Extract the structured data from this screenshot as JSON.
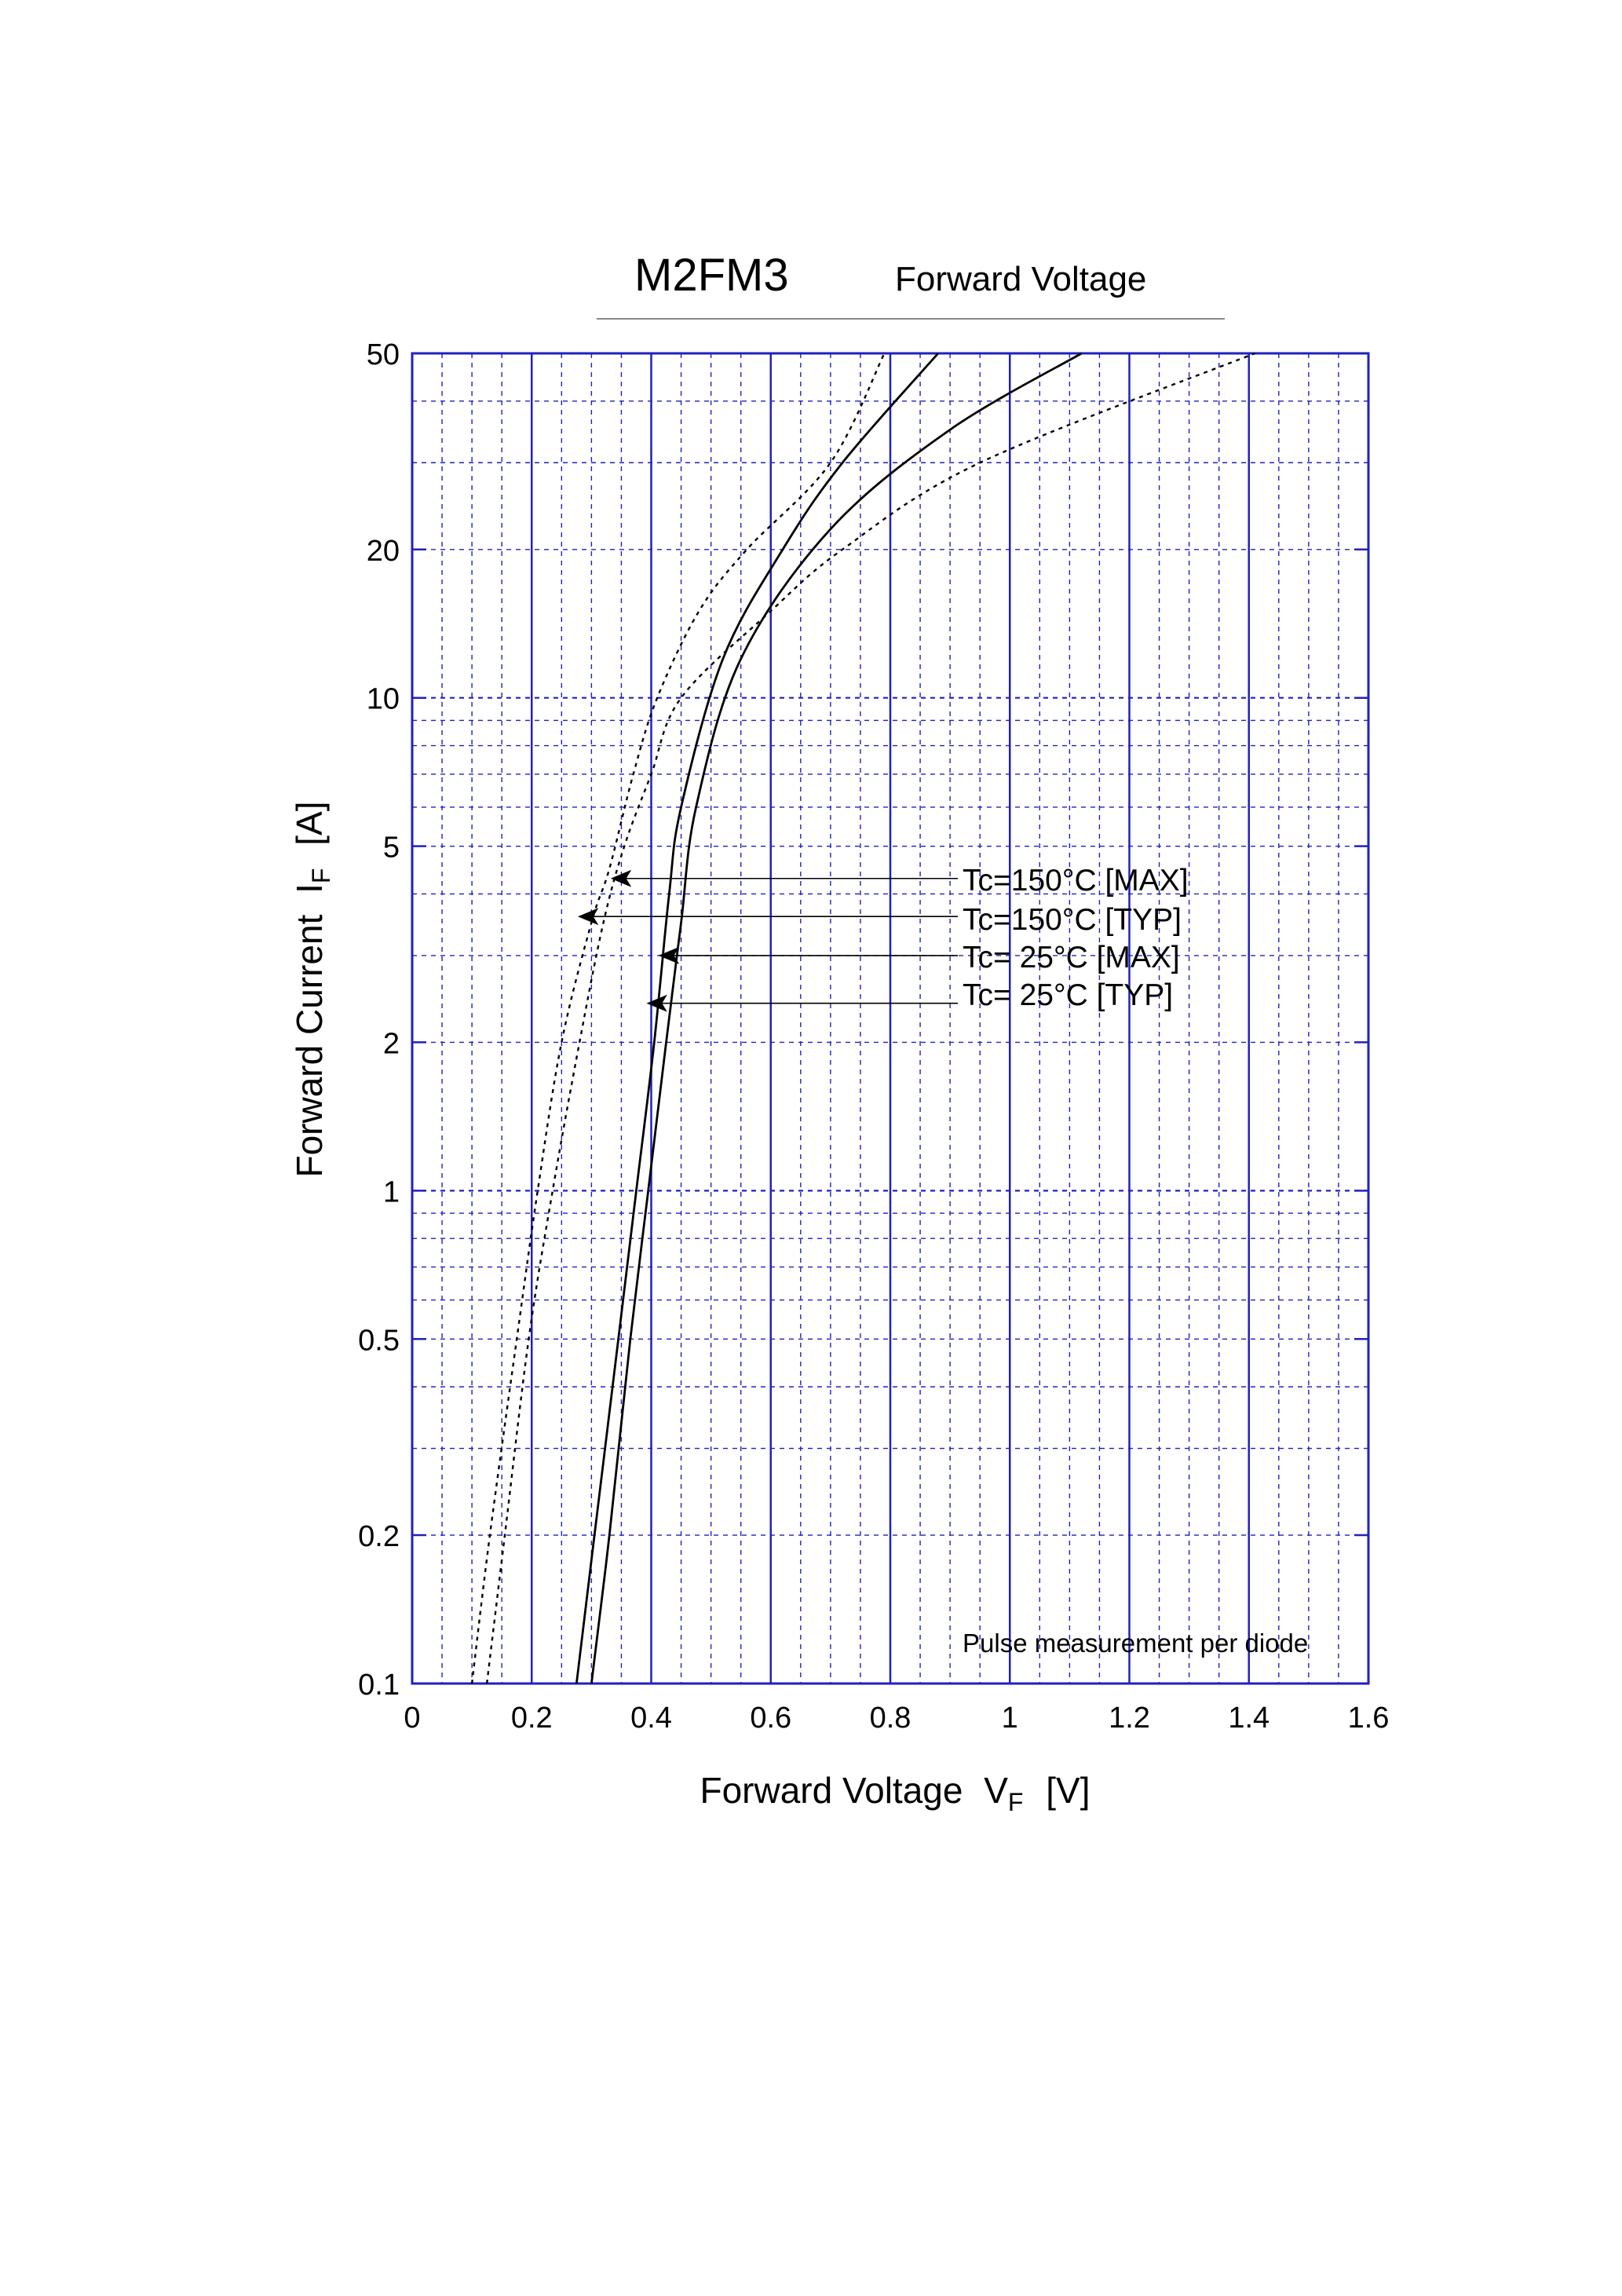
{
  "header": {
    "part_number": "M2FM3",
    "chart_title": "Forward Voltage"
  },
  "chart_data": {
    "type": "line",
    "title": "Forward Voltage",
    "xlabel": {
      "text": "Forward Voltage",
      "symbol": "V",
      "subscript": "F",
      "unit": "[V]"
    },
    "ylabel": {
      "text": "Forward Current",
      "symbol": "I",
      "subscript": "F",
      "unit": "[A]"
    },
    "xlim": [
      0,
      1.6
    ],
    "ylim": [
      0.1,
      50
    ],
    "yscale": "log",
    "grid": true,
    "x_ticks": [
      0,
      0.2,
      0.4,
      0.6,
      0.8,
      1,
      1.2,
      1.4,
      1.6
    ],
    "x_tick_labels": [
      "0",
      "0.2",
      "0.4",
      "0.6",
      "0.8",
      "1",
      "1.2",
      "1.4",
      "1.6"
    ],
    "y_ticks": [
      0.1,
      0.2,
      0.5,
      1,
      2,
      5,
      10,
      20,
      50
    ],
    "y_tick_labels": [
      "0.1",
      "0.2",
      "0.5",
      "1",
      "2",
      "5",
      "10",
      "20",
      "50"
    ],
    "note": "Pulse measurement per diode",
    "series": [
      {
        "name": "Tc=150°C [MAX]",
        "style": "dotted",
        "points": [
          [
            0.1,
            0.1
          ],
          [
            0.13,
            0.2
          ],
          [
            0.175,
            0.5
          ],
          [
            0.21,
            1
          ],
          [
            0.25,
            2
          ],
          [
            0.3,
            3.5
          ],
          [
            0.33,
            4.5
          ],
          [
            0.37,
            7
          ],
          [
            0.41,
            10
          ],
          [
            0.48,
            15
          ],
          [
            0.56,
            20
          ],
          [
            0.7,
            30
          ],
          [
            0.79,
            50
          ]
        ]
      },
      {
        "name": "Tc=150°C [TYP]",
        "style": "dotted",
        "points": [
          [
            0.125,
            0.1
          ],
          [
            0.155,
            0.2
          ],
          [
            0.195,
            0.5
          ],
          [
            0.235,
            1
          ],
          [
            0.28,
            2
          ],
          [
            0.32,
            3.5
          ],
          [
            0.355,
            5
          ],
          [
            0.4,
            7
          ],
          [
            0.45,
            10
          ],
          [
            0.6,
            15
          ],
          [
            0.72,
            20
          ],
          [
            0.95,
            30
          ],
          [
            1.41,
            50
          ]
        ]
      },
      {
        "name": "Tc=  25°C [MAX]",
        "style": "solid",
        "points": [
          [
            0.275,
            0.1
          ],
          [
            0.305,
            0.2
          ],
          [
            0.345,
            0.5
          ],
          [
            0.375,
            1
          ],
          [
            0.405,
            2
          ],
          [
            0.43,
            4
          ],
          [
            0.45,
            6
          ],
          [
            0.52,
            12
          ],
          [
            0.62,
            20
          ],
          [
            0.72,
            30
          ],
          [
            0.88,
            50
          ]
        ]
      },
      {
        "name": "Tc=  25°C [TYP]",
        "style": "solid",
        "points": [
          [
            0.3,
            0.1
          ],
          [
            0.33,
            0.2
          ],
          [
            0.365,
            0.5
          ],
          [
            0.395,
            1
          ],
          [
            0.425,
            2
          ],
          [
            0.45,
            3.5
          ],
          [
            0.475,
            6
          ],
          [
            0.55,
            12
          ],
          [
            0.7,
            22
          ],
          [
            0.9,
            35
          ],
          [
            1.12,
            50
          ]
        ]
      }
    ],
    "annotations": [
      {
        "text": "Tc=150°C [MAX]",
        "target": [
          0.335,
          4.3
        ]
      },
      {
        "text": "Tc=150°C [TYP]",
        "target": [
          0.28,
          3.6
        ]
      },
      {
        "text": "Tc=  25°C [MAX]",
        "target": [
          0.415,
          3.0
        ]
      },
      {
        "text": "Tc=  25°C [TYP]",
        "target": [
          0.395,
          2.4
        ]
      }
    ]
  }
}
